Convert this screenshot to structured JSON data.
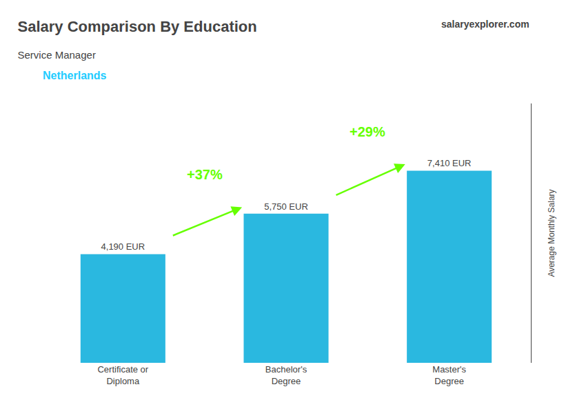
{
  "chart_data": {
    "type": "bar",
    "title": "Salary Comparison By Education",
    "subtitle": "Service Manager",
    "ylabel": "Average Monthly Salary",
    "categories": [
      "Certificate or\nDiploma",
      "Bachelor's\nDegree",
      "Master's\nDegree"
    ],
    "values": [
      4190,
      5750,
      7410
    ],
    "value_labels": [
      "4,190 EUR",
      "5,750 EUR",
      "7,410 EUR"
    ],
    "data_labels": true,
    "color": "#2ab8e0",
    "ylim": [
      0,
      10000
    ],
    "tick_labels": "x",
    "grid": false,
    "annotations": [
      {
        "text": "Netherlands",
        "color": "#22ccff"
      },
      {
        "text": "salaryexplorer.com"
      },
      {
        "text": "+37%",
        "color": "#66ff00"
      },
      {
        "text": "+29%",
        "color": "#66ff00"
      }
    ]
  }
}
